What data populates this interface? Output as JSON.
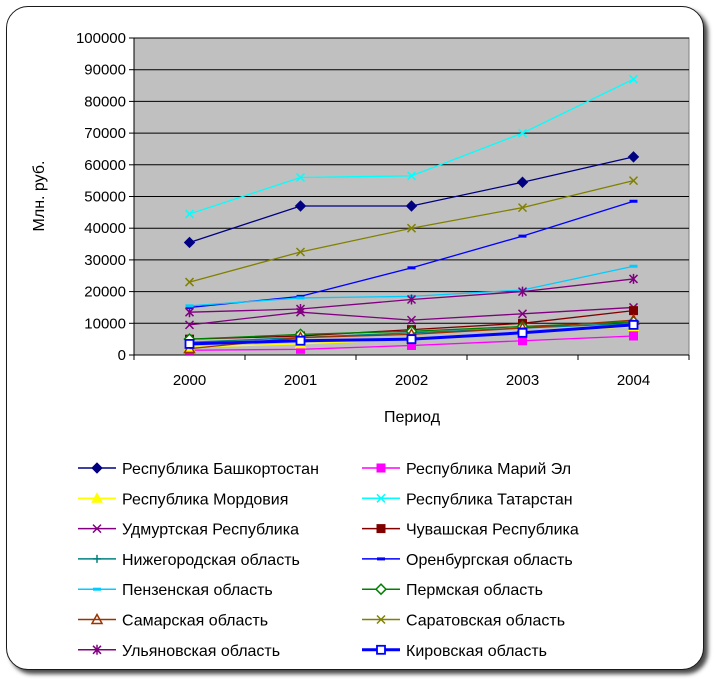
{
  "chart_data": {
    "type": "line",
    "xlabel": "Период",
    "ylabel": "Млн. руб.",
    "x": [
      "2000",
      "2001",
      "2002",
      "2003",
      "2004"
    ],
    "ylim": [
      0,
      100000
    ],
    "yticks": [
      "0",
      "10000",
      "20000",
      "30000",
      "40000",
      "50000",
      "60000",
      "70000",
      "80000",
      "90000",
      "100000"
    ],
    "grid": true,
    "plot_background": "#c0c0c0",
    "legend_position": "bottom",
    "series": [
      {
        "name": "Республика Башкортостан",
        "color": "#000080",
        "marker": "diamond",
        "values": [
          35500,
          47000,
          47000,
          54500,
          62500
        ]
      },
      {
        "name": "Республика Марий Эл",
        "color": "#ff00ff",
        "marker": "square",
        "values": [
          1500,
          1800,
          3000,
          4500,
          6000
        ]
      },
      {
        "name": "Республика Мордовия",
        "color": "#ffff00",
        "marker": "triangle",
        "values": [
          2500,
          3500,
          5000,
          7000,
          9000
        ]
      },
      {
        "name": "Республика Татарстан",
        "color": "#00ffff",
        "marker": "x",
        "values": [
          44500,
          56000,
          56500,
          70000,
          87000
        ]
      },
      {
        "name": "Удмуртская Республика",
        "color": "#800080",
        "marker": "x",
        "values": [
          9500,
          13500,
          11000,
          13000,
          15000
        ]
      },
      {
        "name": "Чувашская Республика",
        "color": "#800000",
        "marker": "square",
        "values": [
          5000,
          6000,
          8000,
          10000,
          14000
        ]
      },
      {
        "name": "Нижегородская область",
        "color": "#008080",
        "marker": "plus",
        "values": [
          4000,
          5500,
          7000,
          8500,
          10000
        ]
      },
      {
        "name": "Оренбургская область",
        "color": "#0000ff",
        "marker": "dash",
        "values": [
          15000,
          18500,
          27500,
          37500,
          48500
        ]
      },
      {
        "name": "Пензенская область",
        "color": "#00ccff",
        "marker": "dash",
        "values": [
          15500,
          18000,
          18500,
          20500,
          28000
        ]
      },
      {
        "name": "Пермская область",
        "color": "#008000",
        "marker": "diamond-open",
        "values": [
          5000,
          6500,
          7500,
          9000,
          10500
        ]
      },
      {
        "name": "Самарская область",
        "color": "#993300",
        "marker": "triangle-open",
        "values": [
          2000,
          5500,
          6500,
          8500,
          11000
        ]
      },
      {
        "name": "Саратовская область",
        "color": "#808000",
        "marker": "x",
        "values": [
          23000,
          32500,
          40000,
          46500,
          55000
        ]
      },
      {
        "name": "Ульяновская область",
        "color": "#800080",
        "marker": "star",
        "values": [
          13500,
          14500,
          17500,
          20000,
          24000
        ]
      },
      {
        "name": "Кировская область",
        "color": "#0000ff",
        "marker": "square-open",
        "values": [
          3500,
          4500,
          5000,
          7000,
          9500
        ]
      }
    ]
  }
}
